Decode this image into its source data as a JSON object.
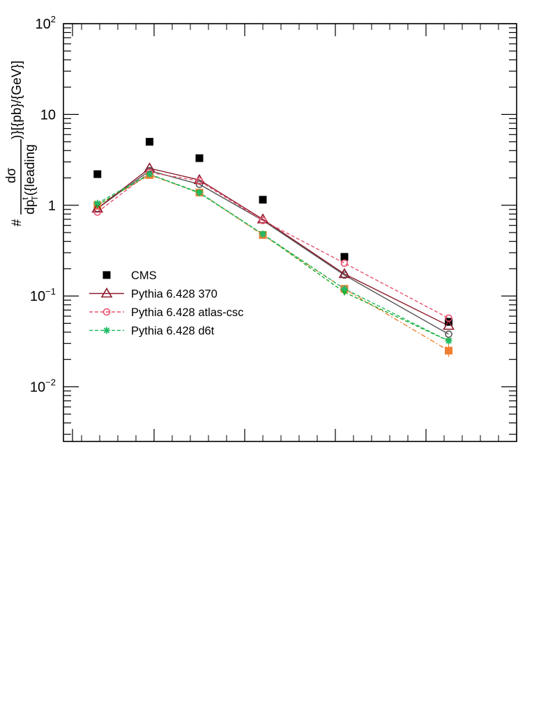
{
  "chart_data": {
    "type": "line",
    "title": "",
    "ylabel": {
      "prefix": "#",
      "numerator": "dσ",
      "den_main": "dp",
      "den_sup": "t",
      "den_sub": "T",
      "den_rest": "({leading",
      "suffix": ")}[{pb}/{GeV}]"
    },
    "y_scale": "log",
    "ylim": [
      0.0025,
      100
    ],
    "xlim": [
      0,
      10
    ],
    "y_ticks": [
      {
        "value": 100,
        "base": "10",
        "exp": "2"
      },
      {
        "value": 10,
        "base": "10",
        "exp": ""
      },
      {
        "value": 1,
        "base": "1",
        "exp": ""
      },
      {
        "value": 0.1,
        "base": "10",
        "exp": "−1"
      },
      {
        "value": 0.01,
        "base": "10",
        "exp": "−2"
      }
    ],
    "x_major_ticks": [
      0.2,
      2,
      4,
      6,
      8,
      10
    ],
    "x": [
      0.75,
      1.9,
      3.0,
      4.4,
      6.2,
      8.5
    ],
    "legend_position": "middle-left",
    "series": [
      {
        "name": "CMS",
        "key": "cms",
        "values": [
          2.2,
          5.0,
          3.3,
          1.15,
          0.27,
          0.052
        ],
        "color": "#000000",
        "marker": "square",
        "dash": "none",
        "line": false
      },
      {
        "name": "Pythia 6.428 370",
        "key": "p370",
        "values": [
          0.92,
          2.55,
          1.9,
          0.7,
          0.175,
          0.047
        ],
        "color": "#8b1a2b",
        "marker": "triangle-open",
        "dash": "none",
        "line": true
      },
      {
        "name": "Pythia 6.428 atlas-csc",
        "key": "atlas",
        "values": [
          0.84,
          2.3,
          1.85,
          0.68,
          0.23,
          0.057
        ],
        "color": "#e8506e",
        "marker": "circle-open",
        "dash": "5,3",
        "line": true
      },
      {
        "name": "Pythia 6.428 d6t",
        "key": "d6t",
        "values": [
          1.05,
          2.2,
          1.38,
          0.48,
          0.12,
          0.032
        ],
        "color": "#22bb66",
        "marker": "star",
        "dash": "5,3",
        "line": true
      }
    ],
    "extra_series": [
      {
        "key": "dark",
        "values": [
          0.92,
          2.4,
          1.7,
          0.68,
          0.17,
          0.038
        ],
        "color": "#555555",
        "marker": "circle-open",
        "dash": "none"
      },
      {
        "key": "orange",
        "values": [
          1.0,
          2.15,
          1.38,
          0.47,
          0.12,
          0.025
        ],
        "color": "#f07f33",
        "marker": "square",
        "dash": "7,3,2,3"
      },
      {
        "key": "green",
        "values": [
          1.0,
          2.2,
          1.36,
          0.48,
          0.11,
          0.032
        ],
        "color": "#1aaa22",
        "marker": "triangle-down",
        "dash": "5,3"
      }
    ]
  }
}
